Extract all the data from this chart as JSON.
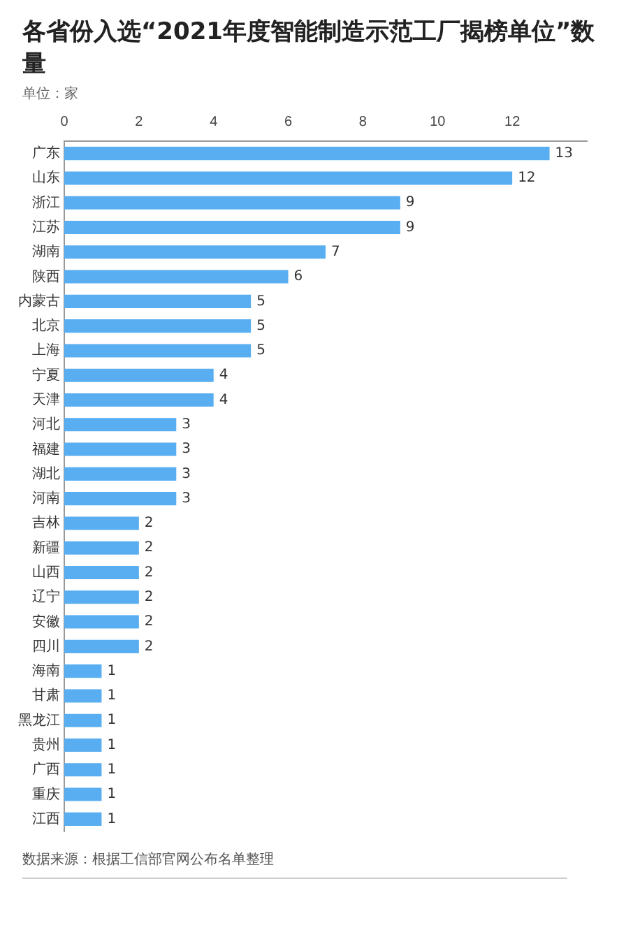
{
  "chart_data": {
    "type": "bar",
    "orientation": "horizontal",
    "title": "各省份入选“2021年度智能制造示范工厂揭榜单位”数量",
    "subtitle": "单位：家",
    "categories": [
      "广东",
      "山东",
      "浙江",
      "江苏",
      "湖南",
      "陕西",
      "内蒙古",
      "北京",
      "上海",
      "宁夏",
      "天津",
      "河北",
      "福建",
      "湖北",
      "河南",
      "吉林",
      "新疆",
      "山西",
      "辽宁",
      "安徽",
      "四川",
      "海南",
      "甘肃",
      "黑龙江",
      "贵州",
      "广西",
      "重庆",
      "江西"
    ],
    "values": [
      13,
      12,
      9,
      9,
      7,
      6,
      5,
      5,
      5,
      4,
      4,
      3,
      3,
      3,
      3,
      2,
      2,
      2,
      2,
      2,
      2,
      1,
      1,
      1,
      1,
      1,
      1,
      1
    ],
    "color": "#58aef0",
    "xlim": [
      0,
      14
    ],
    "xticks": [
      0,
      2,
      4,
      6,
      8,
      10,
      12
    ],
    "grid": false,
    "data_labels": true,
    "legend": false,
    "annotations": [
      "数据来源：根据工信部官网公布名单整理"
    ]
  }
}
